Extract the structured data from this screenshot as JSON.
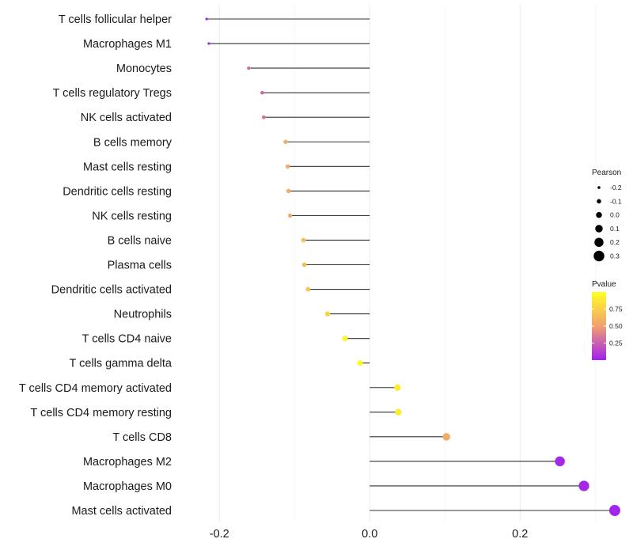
{
  "chart_data": {
    "type": "lollipop",
    "title": "",
    "xlabel": "",
    "ylabel": "",
    "xlim": [
      -0.255,
      0.345
    ],
    "xticks": [
      -0.2,
      0.0,
      0.2
    ],
    "xtick_labels": [
      "-0.2",
      "0.0",
      "0.2"
    ],
    "grid": true,
    "categories": [
      "T cells follicular helper",
      "Macrophages M1",
      "Monocytes",
      "T cells regulatory  Tregs",
      "NK cells activated",
      "B cells memory",
      "Mast cells resting",
      "Dendritic cells resting",
      "NK cells resting",
      "B cells naive",
      "Plasma cells",
      "Dendritic cells activated",
      "Neutrophils",
      "T cells CD4 naive",
      "T cells gamma delta",
      "T cells CD4 memory activated",
      "T cells CD4 memory resting",
      "T cells CD8",
      "Macrophages M2",
      "Macrophages M0",
      "Mast cells activated"
    ],
    "pearson": [
      -0.217,
      -0.214,
      -0.161,
      -0.143,
      -0.141,
      -0.112,
      -0.109,
      -0.108,
      -0.106,
      -0.088,
      -0.087,
      -0.082,
      -0.056,
      -0.033,
      -0.013,
      0.037,
      0.038,
      0.102,
      0.253,
      0.285,
      0.326
    ],
    "pvalue": [
      0.01,
      0.02,
      0.3,
      0.28,
      0.32,
      0.55,
      0.55,
      0.55,
      0.56,
      0.65,
      0.66,
      0.7,
      0.78,
      0.96,
      0.98,
      0.9,
      0.9,
      0.55,
      0.03,
      0.03,
      0.02
    ],
    "legend_size": {
      "title": "Pearson",
      "values": [
        -0.2,
        -0.1,
        0.0,
        0.1,
        0.2,
        0.3
      ],
      "labels": [
        "-0.2",
        "-0.1",
        "0.0",
        "0.1",
        "0.2",
        "0.3"
      ]
    },
    "legend_color": {
      "title": "Pvalue",
      "range": [
        0,
        1
      ],
      "labels": [
        "0.75",
        "0.50",
        "0.25"
      ],
      "label_values": [
        0.75,
        0.5,
        0.25
      ],
      "colors": [
        "#a020f0",
        "#f2a070",
        "#ffff20"
      ]
    },
    "legend_position": "right"
  }
}
